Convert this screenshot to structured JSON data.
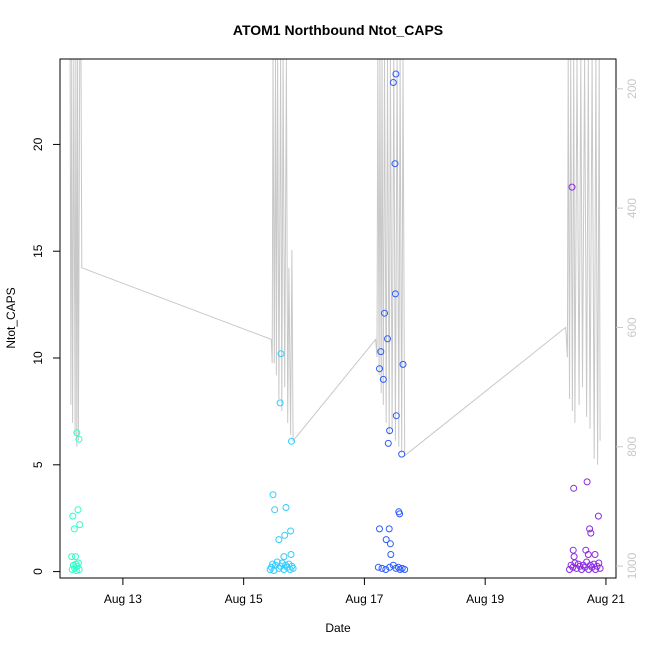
{
  "chart_data": {
    "type": "scatter",
    "title": "ATOM1 Northbound Ntot_CAPS",
    "xlabel": "Date",
    "ylabel": "Ntot_CAPS",
    "x_range": [
      "2024-08-11T23:00",
      "2024-08-21T04:00"
    ],
    "ylim": [
      -0.3,
      24
    ],
    "y_ticks": [
      0,
      5,
      10,
      15,
      20
    ],
    "x_ticks": [
      "2024-08-13",
      "2024-08-15",
      "2024-08-17",
      "2024-08-19",
      "2024-08-21"
    ],
    "x_tick_labels": [
      "Aug 13",
      "Aug 15",
      "Aug 17",
      "Aug 19",
      "Aug 21"
    ],
    "right_axis": {
      "color": "#c8c8c8",
      "reversed": true,
      "ylim": [
        1020,
        150
      ],
      "ticks": [
        200,
        400,
        600,
        800,
        1000
      ],
      "tick_labels": [
        "200",
        "400",
        "600",
        "800",
        "1000"
      ]
    },
    "grid": false,
    "legend": "none",
    "marker": "open-circle",
    "series": [
      {
        "color": "#2effc9",
        "points": [
          [
            "2024-08-12T04:05",
            2.6
          ],
          [
            "2024-08-12T04:40",
            2.0
          ],
          [
            "2024-08-12T06:10",
            2.9
          ],
          [
            "2024-08-12T06:50",
            2.2
          ],
          [
            "2024-08-12T05:40",
            6.5
          ],
          [
            "2024-08-12T06:30",
            6.2
          ],
          [
            "2024-08-12T03:40",
            0.7
          ],
          [
            "2024-08-12T05:10",
            0.7
          ],
          [
            "2024-08-12T03:50",
            0.1
          ],
          [
            "2024-08-12T04:20",
            0.3
          ],
          [
            "2024-08-12T04:50",
            0.15
          ],
          [
            "2024-08-12T05:20",
            0.35
          ],
          [
            "2024-08-12T05:30",
            0.05
          ],
          [
            "2024-08-12T05:50",
            0.25
          ],
          [
            "2024-08-12T06:20",
            0.4
          ],
          [
            "2024-08-12T06:35",
            0.1
          ]
        ]
      },
      {
        "color": "#30ccff",
        "points": [
          [
            "2024-08-15T11:40",
            3.6
          ],
          [
            "2024-08-15T12:20",
            2.9
          ],
          [
            "2024-08-15T16:50",
            3.0
          ],
          [
            "2024-08-15T18:40",
            1.9
          ],
          [
            "2024-08-15T16:20",
            1.7
          ],
          [
            "2024-08-15T14:00",
            1.5
          ],
          [
            "2024-08-15T14:30",
            7.9
          ],
          [
            "2024-08-15T14:50",
            10.2
          ],
          [
            "2024-08-15T19:00",
            6.1
          ],
          [
            "2024-08-15T16:00",
            0.7
          ],
          [
            "2024-08-15T18:50",
            0.8
          ],
          [
            "2024-08-15T10:30",
            0.1
          ],
          [
            "2024-08-15T11:00",
            0.2
          ],
          [
            "2024-08-15T11:30",
            0.35
          ],
          [
            "2024-08-15T12:00",
            0.05
          ],
          [
            "2024-08-15T12:40",
            0.3
          ],
          [
            "2024-08-15T13:20",
            0.45
          ],
          [
            "2024-08-15T14:00",
            0.15
          ],
          [
            "2024-08-15T14:40",
            0.25
          ],
          [
            "2024-08-15T15:20",
            0.4
          ],
          [
            "2024-08-15T16:00",
            0.1
          ],
          [
            "2024-08-15T16:40",
            0.3
          ],
          [
            "2024-08-15T17:20",
            0.2
          ],
          [
            "2024-08-15T18:00",
            0.35
          ],
          [
            "2024-08-15T18:30",
            0.1
          ],
          [
            "2024-08-15T19:10",
            0.25
          ],
          [
            "2024-08-15T19:40",
            0.15
          ]
        ]
      },
      {
        "color": "#2b5cff",
        "points": [
          [
            "2024-08-17T12:30",
            23.3
          ],
          [
            "2024-08-17T11:30",
            22.9
          ],
          [
            "2024-08-17T12:10",
            19.1
          ],
          [
            "2024-08-17T12:20",
            13.0
          ],
          [
            "2024-08-17T08:00",
            12.1
          ],
          [
            "2024-08-17T09:10",
            10.9
          ],
          [
            "2024-08-17T06:30",
            10.3
          ],
          [
            "2024-08-17T15:20",
            9.7
          ],
          [
            "2024-08-17T06:00",
            9.5
          ],
          [
            "2024-08-17T07:30",
            9.0
          ],
          [
            "2024-08-17T12:40",
            7.3
          ],
          [
            "2024-08-17T10:00",
            6.6
          ],
          [
            "2024-08-17T09:30",
            6.0
          ],
          [
            "2024-08-17T14:50",
            5.5
          ],
          [
            "2024-08-17T13:40",
            2.8
          ],
          [
            "2024-08-17T14:00",
            2.7
          ],
          [
            "2024-08-17T06:00",
            2.0
          ],
          [
            "2024-08-17T09:50",
            2.0
          ],
          [
            "2024-08-17T08:40",
            1.5
          ],
          [
            "2024-08-17T10:20",
            1.3
          ],
          [
            "2024-08-17T10:30",
            0.8
          ],
          [
            "2024-08-17T05:30",
            0.2
          ],
          [
            "2024-08-17T07:00",
            0.15
          ],
          [
            "2024-08-17T08:30",
            0.1
          ],
          [
            "2024-08-17T10:00",
            0.2
          ],
          [
            "2024-08-17T11:30",
            0.3
          ],
          [
            "2024-08-17T12:30",
            0.15
          ],
          [
            "2024-08-17T13:30",
            0.2
          ],
          [
            "2024-08-17T14:10",
            0.1
          ],
          [
            "2024-08-17T15:00",
            0.15
          ],
          [
            "2024-08-17T16:00",
            0.1
          ]
        ]
      },
      {
        "color": "#8a2be2",
        "points": [
          [
            "2024-08-20T10:30",
            18.0
          ],
          [
            "2024-08-20T16:30",
            4.2
          ],
          [
            "2024-08-20T11:10",
            3.9
          ],
          [
            "2024-08-20T21:00",
            2.6
          ],
          [
            "2024-08-20T17:30",
            2.0
          ],
          [
            "2024-08-20T18:00",
            1.8
          ],
          [
            "2024-08-20T11:00",
            1.0
          ],
          [
            "2024-08-20T16:00",
            1.0
          ],
          [
            "2024-08-20T11:20",
            0.7
          ],
          [
            "2024-08-20T17:00",
            0.8
          ],
          [
            "2024-08-20T19:40",
            0.8
          ],
          [
            "2024-08-20T09:30",
            0.1
          ],
          [
            "2024-08-20T10:10",
            0.3
          ],
          [
            "2024-08-20T10:50",
            0.2
          ],
          [
            "2024-08-20T11:40",
            0.4
          ],
          [
            "2024-08-20T12:20",
            0.15
          ],
          [
            "2024-08-20T13:00",
            0.35
          ],
          [
            "2024-08-20T13:40",
            0.25
          ],
          [
            "2024-08-20T14:20",
            0.1
          ],
          [
            "2024-08-20T15:00",
            0.3
          ],
          [
            "2024-08-20T15:40",
            0.2
          ],
          [
            "2024-08-20T16:20",
            0.45
          ],
          [
            "2024-08-20T17:10",
            0.1
          ],
          [
            "2024-08-20T17:50",
            0.3
          ],
          [
            "2024-08-20T18:30",
            0.2
          ],
          [
            "2024-08-20T19:10",
            0.35
          ],
          [
            "2024-08-20T19:50",
            0.1
          ],
          [
            "2024-08-20T20:30",
            0.25
          ],
          [
            "2024-08-20T21:10",
            0.4
          ],
          [
            "2024-08-20T21:40",
            0.15
          ]
        ]
      }
    ],
    "line_series": {
      "color": "#c8c8c8",
      "axis": "right",
      "segments": [
        [
          [
            "2024-08-12T03:00",
            150
          ],
          [
            "2024-08-12T03:20",
            730
          ],
          [
            "2024-08-12T03:40",
            150
          ],
          [
            "2024-08-12T04:00",
            760
          ],
          [
            "2024-08-12T04:30",
            150
          ],
          [
            "2024-08-12T05:00",
            780
          ],
          [
            "2024-08-12T05:20",
            150
          ],
          [
            "2024-08-12T05:40",
            800
          ],
          [
            "2024-08-12T06:00",
            150
          ],
          [
            "2024-08-12T06:20",
            790
          ],
          [
            "2024-08-12T06:50",
            150
          ],
          [
            "2024-08-12T07:20",
            150
          ],
          [
            "2024-08-12T07:40",
            500
          ],
          [
            "2024-08-15T11:00",
            620
          ],
          [
            "2024-08-15T11:20",
            660
          ],
          [
            "2024-08-15T11:40",
            150
          ],
          [
            "2024-08-15T12:10",
            660
          ],
          [
            "2024-08-15T12:40",
            150
          ],
          [
            "2024-08-15T13:00",
            680
          ],
          [
            "2024-08-15T13:30",
            150
          ],
          [
            "2024-08-15T14:00",
            720
          ],
          [
            "2024-08-15T14:40",
            150
          ],
          [
            "2024-08-15T15:10",
            740
          ],
          [
            "2024-08-15T15:40",
            150
          ],
          [
            "2024-08-15T16:20",
            700
          ],
          [
            "2024-08-15T17:00",
            150
          ],
          [
            "2024-08-15T17:30",
            760
          ],
          [
            "2024-08-15T18:00",
            500
          ],
          [
            "2024-08-15T18:40",
            780
          ],
          [
            "2024-08-15T19:10",
            470
          ],
          [
            "2024-08-15T19:40",
            790
          ],
          [
            "2024-08-17T04:30",
            620
          ],
          [
            "2024-08-17T05:00",
            650
          ],
          [
            "2024-08-17T05:20",
            150
          ],
          [
            "2024-08-17T05:50",
            680
          ],
          [
            "2024-08-17T06:10",
            150
          ],
          [
            "2024-08-17T06:40",
            710
          ],
          [
            "2024-08-17T07:00",
            150
          ],
          [
            "2024-08-17T07:30",
            730
          ],
          [
            "2024-08-17T08:00",
            150
          ],
          [
            "2024-08-17T08:40",
            760
          ],
          [
            "2024-08-17T09:10",
            150
          ],
          [
            "2024-08-17T09:50",
            780
          ],
          [
            "2024-08-17T10:20",
            150
          ],
          [
            "2024-08-17T11:00",
            770
          ],
          [
            "2024-08-17T11:40",
            150
          ],
          [
            "2024-08-17T12:20",
            790
          ],
          [
            "2024-08-17T13:00",
            150
          ],
          [
            "2024-08-17T13:40",
            800
          ],
          [
            "2024-08-17T14:10",
            150
          ],
          [
            "2024-08-17T14:50",
            810
          ],
          [
            "2024-08-17T15:20",
            150
          ],
          [
            "2024-08-17T16:00",
            815
          ],
          [
            "2024-08-20T08:00",
            600
          ],
          [
            "2024-08-20T08:40",
            650
          ],
          [
            "2024-08-20T09:00",
            150
          ],
          [
            "2024-08-20T09:30",
            720
          ],
          [
            "2024-08-20T10:00",
            150
          ],
          [
            "2024-08-20T10:40",
            740
          ],
          [
            "2024-08-20T11:10",
            150
          ],
          [
            "2024-08-20T11:40",
            760
          ],
          [
            "2024-08-20T12:30",
            150
          ],
          [
            "2024-08-20T13:20",
            730
          ],
          [
            "2024-08-20T14:00",
            150
          ],
          [
            "2024-08-20T14:40",
            700
          ],
          [
            "2024-08-20T15:30",
            150
          ],
          [
            "2024-08-20T16:20",
            750
          ],
          [
            "2024-08-20T17:00",
            150
          ],
          [
            "2024-08-20T17:40",
            770
          ],
          [
            "2024-08-20T18:30",
            150
          ],
          [
            "2024-08-20T19:20",
            820
          ],
          [
            "2024-08-20T20:00",
            150
          ],
          [
            "2024-08-20T20:40",
            830
          ],
          [
            "2024-08-20T21:20",
            150
          ],
          [
            "2024-08-20T21:40",
            790
          ]
        ]
      ]
    }
  }
}
